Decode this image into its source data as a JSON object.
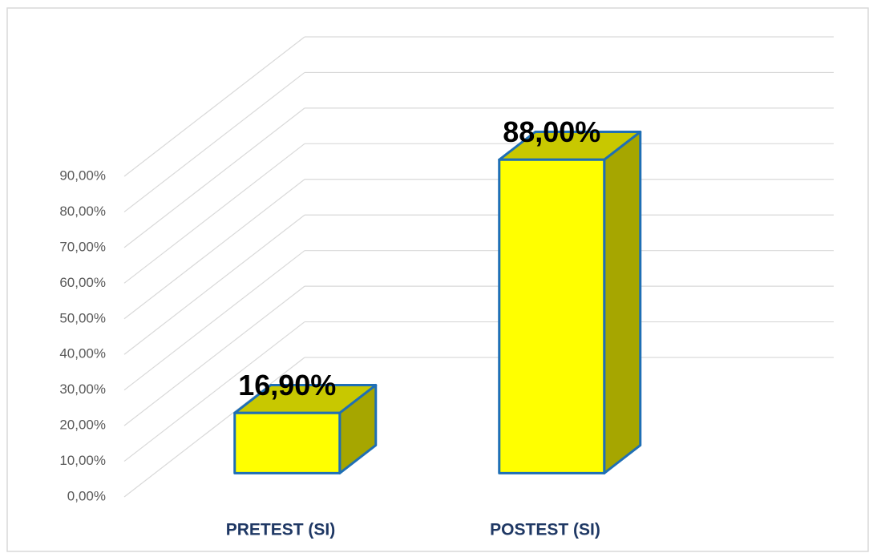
{
  "chart_data": {
    "type": "bar3d",
    "categories": [
      "PRETEST (SI)",
      "POSTEST (SI)"
    ],
    "values": [
      16.9,
      88
    ],
    "value_labels": [
      "16,90%",
      "88,00%"
    ],
    "color": "#ffff00",
    "ylim": [
      0,
      90
    ],
    "yticks": [
      {
        "value": 0,
        "label": "0,00%"
      },
      {
        "value": 10,
        "label": "10,00%"
      },
      {
        "value": 20,
        "label": "20,00%"
      },
      {
        "value": 30,
        "label": "30,00%"
      },
      {
        "value": 40,
        "label": "40,00%"
      },
      {
        "value": 50,
        "label": "50,00%"
      },
      {
        "value": 60,
        "label": "60,00%"
      },
      {
        "value": 70,
        "label": "70,00%"
      },
      {
        "value": 80,
        "label": "80,00%"
      },
      {
        "value": 90,
        "label": "90,00%"
      }
    ],
    "grid": true
  }
}
